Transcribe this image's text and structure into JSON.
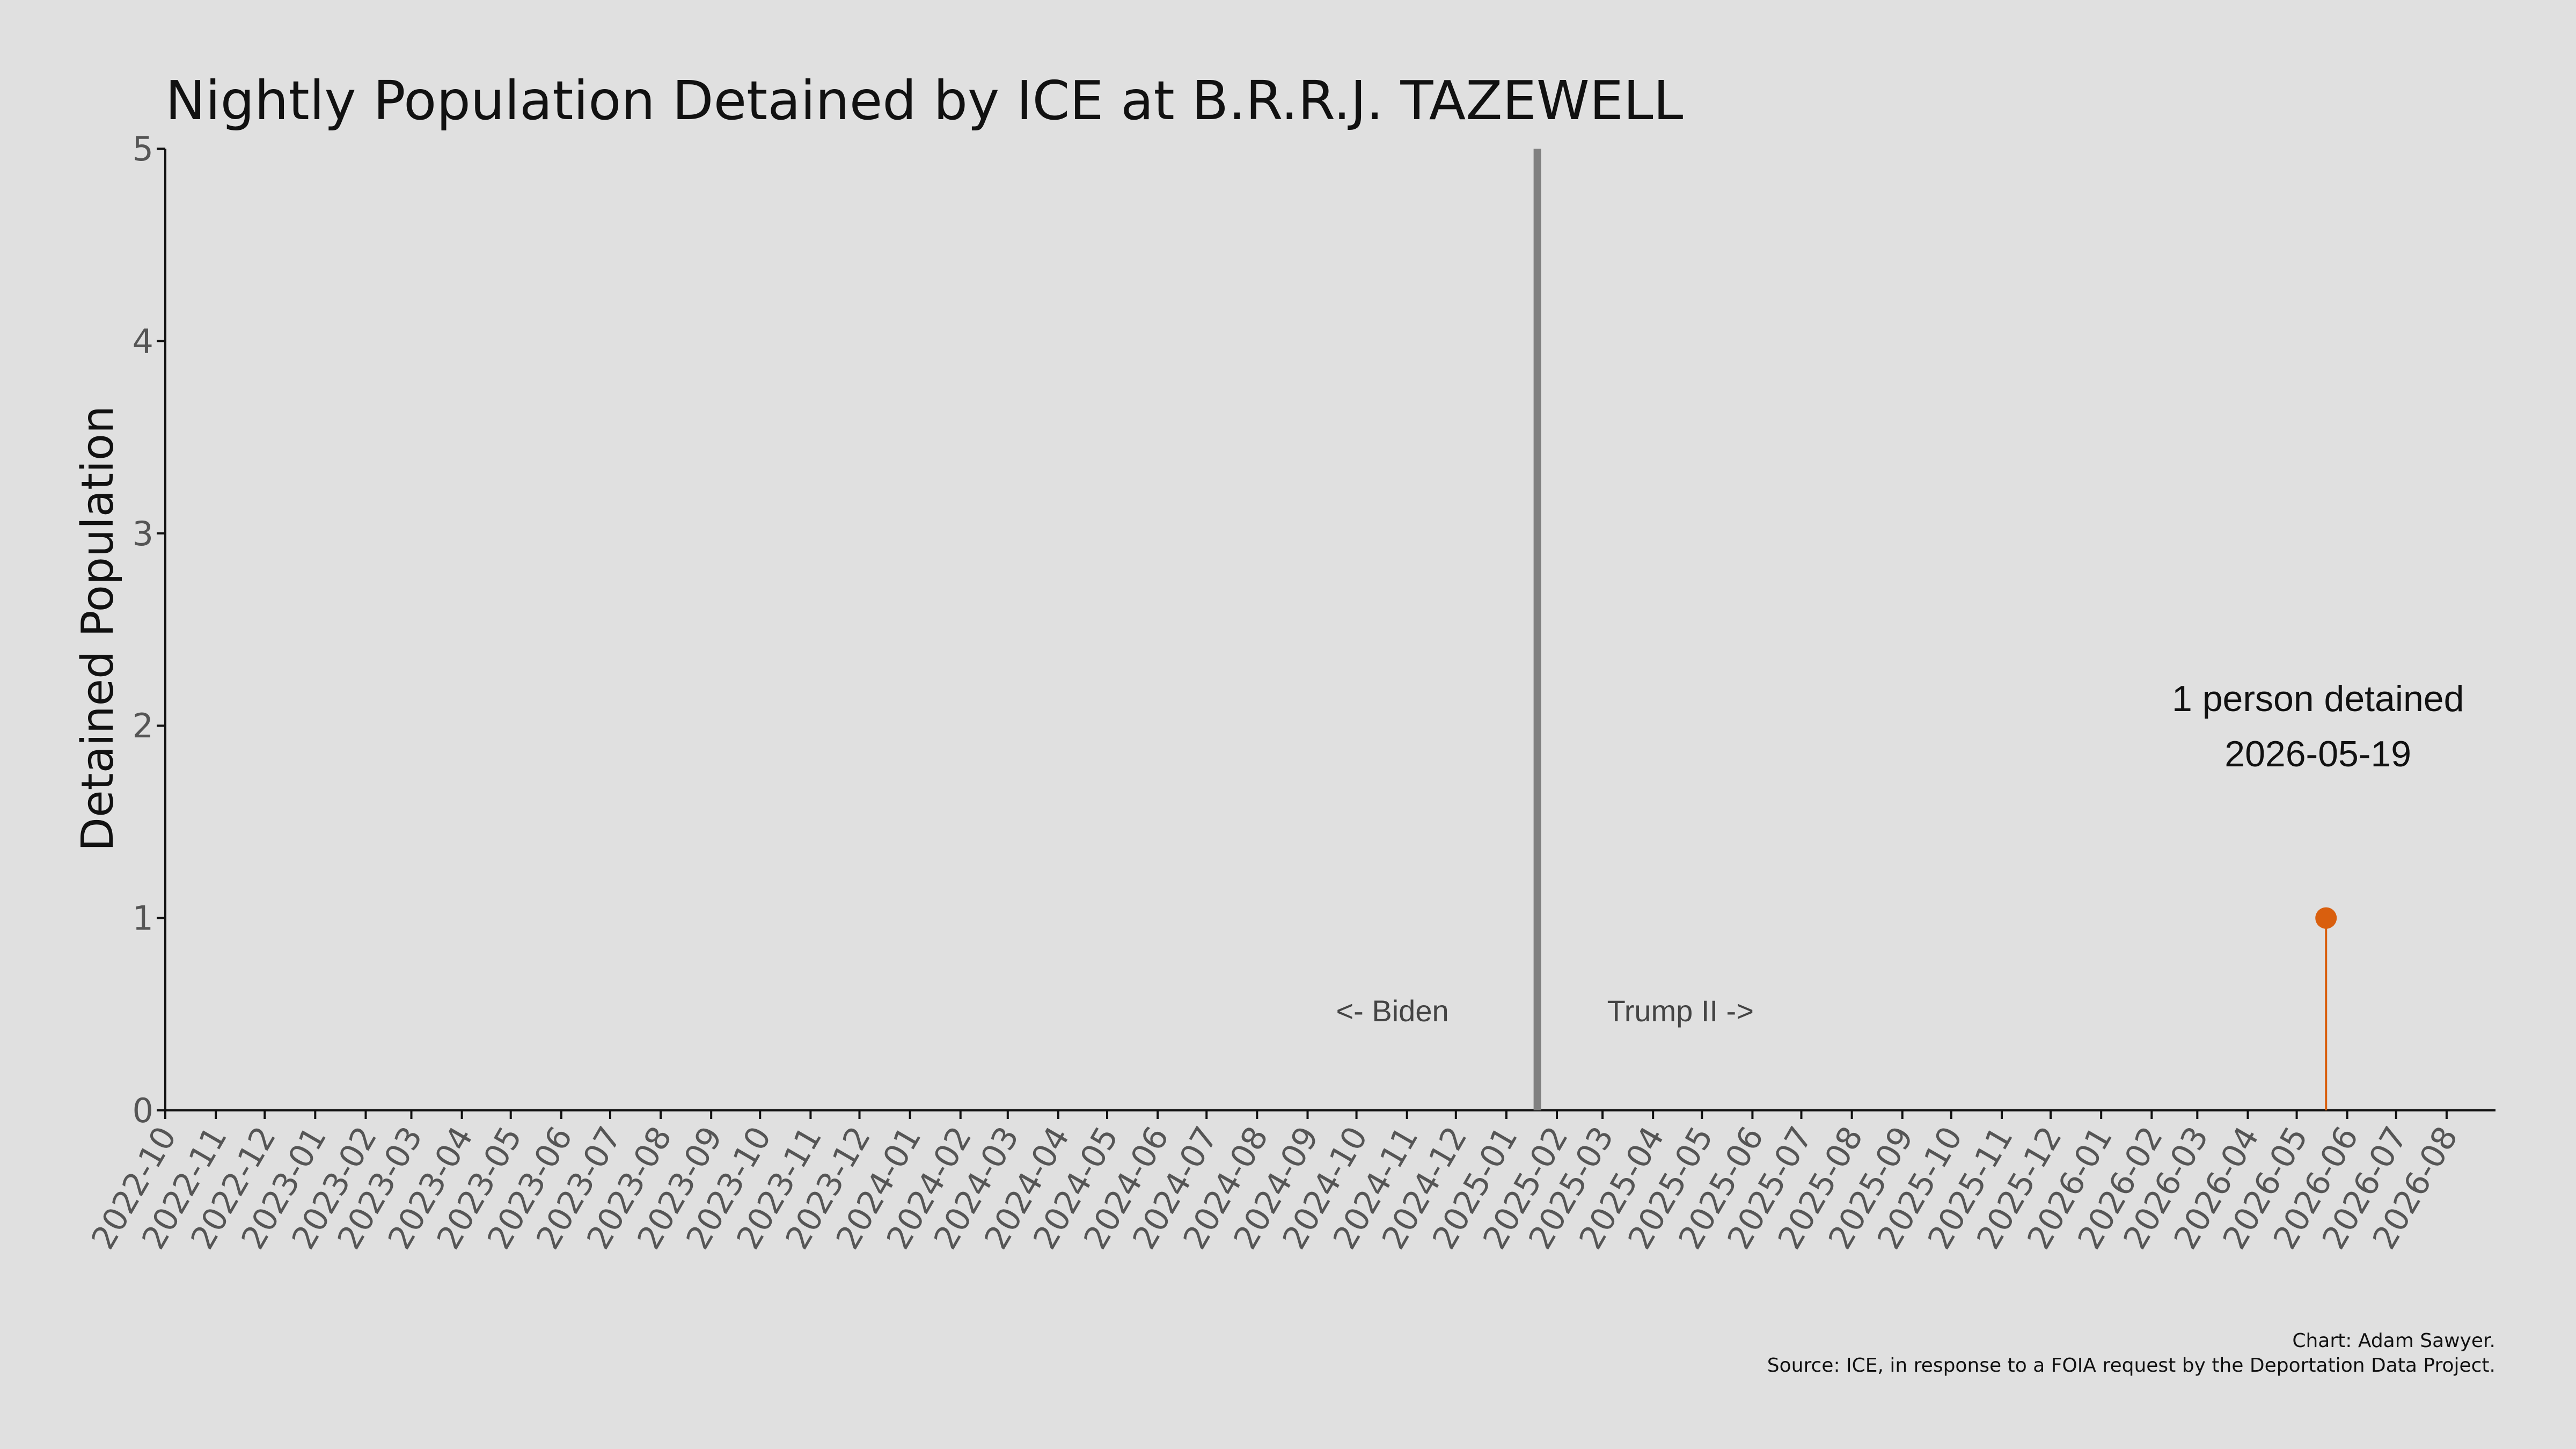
{
  "chart_data": {
    "type": "line",
    "title": "Nightly Population Detained by ICE at B.R.R.J. TAZEWELL",
    "ylabel": "Detained Population",
    "xlabel": "",
    "xlim": [
      "2022-10-01",
      "2026-08-31"
    ],
    "ylim": [
      0,
      5
    ],
    "yticks": [
      "0",
      "1",
      "2",
      "3",
      "4",
      "5"
    ],
    "xticks": [
      "2022-10",
      "2022-11",
      "2022-12",
      "2023-01",
      "2023-02",
      "2023-03",
      "2023-04",
      "2023-05",
      "2023-06",
      "2023-07",
      "2023-08",
      "2023-09",
      "2023-10",
      "2023-11",
      "2023-12",
      "2024-01",
      "2024-02",
      "2024-03",
      "2024-04",
      "2024-05",
      "2024-06",
      "2024-07",
      "2024-08",
      "2024-09",
      "2024-10",
      "2024-11",
      "2024-12",
      "2025-01",
      "2025-02",
      "2025-03",
      "2025-04",
      "2025-05",
      "2025-06",
      "2025-07",
      "2025-08",
      "2025-09",
      "2025-10",
      "2025-11",
      "2025-12",
      "2026-01",
      "2026-02",
      "2026-03",
      "2026-04",
      "2026-05",
      "2026-06",
      "2026-07",
      "2026-08"
    ],
    "grid": false,
    "series": [
      {
        "x": [
          "2026-05-19"
        ],
        "y": [
          1
        ],
        "color": "#d95f0e"
      }
    ],
    "vline": {
      "x": "2025-01-20",
      "color": "#808080"
    },
    "era_labels": {
      "left": "<- Biden",
      "right": "Trump II ->"
    },
    "annotation": {
      "line1": "1 person detained",
      "line2": "2026-05-19",
      "x": "2026-05-19"
    },
    "credit": {
      "line1": "Chart: Adam Sawyer.",
      "line2": "Source: ICE, in response to a FOIA request by the Deportation Data Project."
    }
  }
}
